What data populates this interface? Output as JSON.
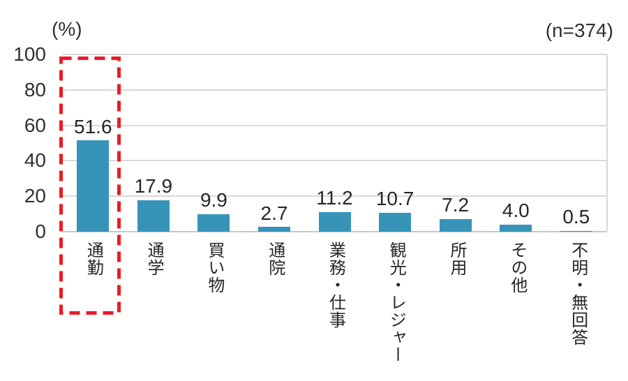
{
  "header": {
    "unit_label": "(%)",
    "sample_label": "(n=374)"
  },
  "y_axis": {
    "ticks": [
      "100",
      "80",
      "60",
      "40",
      "20",
      "0"
    ]
  },
  "chart_data": {
    "type": "bar",
    "title": "",
    "xlabel": "",
    "ylabel": "(%)",
    "ylim": [
      0,
      100
    ],
    "y_tick_values": [
      0,
      20,
      40,
      60,
      80,
      100
    ],
    "grid": "horizontal",
    "legend": "none",
    "sample_size_label": "(n=374)",
    "sample_size": 374,
    "categories": [
      "通勤",
      "通学",
      "買い物",
      "通院",
      "業務・仕事",
      "観光・レジャー",
      "所用",
      "その他",
      "不明・無回答"
    ],
    "values": [
      51.6,
      17.9,
      9.9,
      2.7,
      11.2,
      10.7,
      7.2,
      4.0,
      0.5
    ],
    "value_labels": [
      "51.6",
      "17.9",
      "9.9",
      "2.7",
      "11.2",
      "10.7",
      "7.2",
      "4.0",
      "0.5"
    ],
    "highlighted_category": "通勤",
    "colors": {
      "bar": "#3794b9",
      "highlight_box": "#ec1b23",
      "gridline": "#d9d9d9",
      "text": "#262626"
    }
  }
}
